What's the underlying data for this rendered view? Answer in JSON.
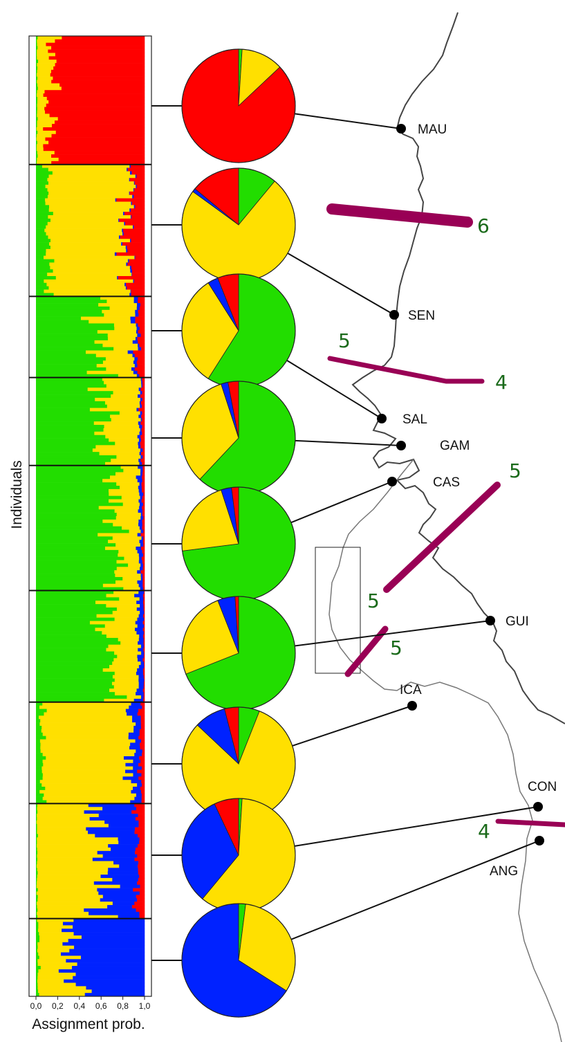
{
  "chart_data": {
    "type": "bar",
    "subtype": "stacked-horizontal-structure-plot-with-pies-and-map",
    "xlabel": "Assignment prob.",
    "ylabel": "Individuals",
    "xlim": [
      0,
      1
    ],
    "xticks": [
      "0,0",
      "0,2",
      "0,4",
      "0,6",
      "0,8",
      "1,0"
    ],
    "cluster_colors": {
      "green": "#22dd00",
      "yellow": "#ffe000",
      "blue": "#0022ff",
      "red": "#ff0000"
    },
    "cluster_order": [
      "green",
      "yellow",
      "blue",
      "red"
    ],
    "populations": [
      {
        "name": "MAU",
        "n": 38,
        "green": 0.01,
        "yellow": 0.12,
        "blue": 0.0,
        "red": 0.87,
        "seed": 11
      },
      {
        "name": "SEN",
        "n": 39,
        "green": 0.11,
        "yellow": 0.74,
        "blue": 0.01,
        "red": 0.14,
        "seed": 23
      },
      {
        "name": "SAL",
        "n": 24,
        "green": 0.59,
        "yellow": 0.32,
        "blue": 0.03,
        "red": 0.06,
        "seed": 37
      },
      {
        "name": "GAM",
        "n": 26,
        "green": 0.62,
        "yellow": 0.33,
        "blue": 0.02,
        "red": 0.03,
        "seed": 41
      },
      {
        "name": "CAS",
        "n": 37,
        "green": 0.73,
        "yellow": 0.22,
        "blue": 0.03,
        "red": 0.02,
        "seed": 53
      },
      {
        "name": "GUI",
        "n": 33,
        "green": 0.69,
        "yellow": 0.25,
        "blue": 0.05,
        "red": 0.01,
        "seed": 67
      },
      {
        "name": "ICA",
        "n": 30,
        "green": 0.06,
        "yellow": 0.81,
        "blue": 0.09,
        "red": 0.04,
        "seed": 71
      },
      {
        "name": "CON",
        "n": 34,
        "green": 0.01,
        "yellow": 0.6,
        "blue": 0.32,
        "red": 0.07,
        "seed": 83
      },
      {
        "name": "ANG",
        "n": 23,
        "green": 0.02,
        "yellow": 0.32,
        "blue": 0.66,
        "red": 0.0,
        "seed": 97
      }
    ],
    "map_sites": [
      {
        "label": "MAU"
      },
      {
        "label": "SEN"
      },
      {
        "label": "SAL"
      },
      {
        "label": "GAM"
      },
      {
        "label": "CAS"
      },
      {
        "label": "GUI"
      },
      {
        "label": "ICA"
      },
      {
        "label": "CON"
      },
      {
        "label": "ANG"
      }
    ],
    "barrier_labels": [
      "6",
      "5",
      "4",
      "5",
      "5",
      "5",
      "4"
    ],
    "barrier_color": "#990055",
    "barrier_label_color": "#1a6a1a"
  }
}
